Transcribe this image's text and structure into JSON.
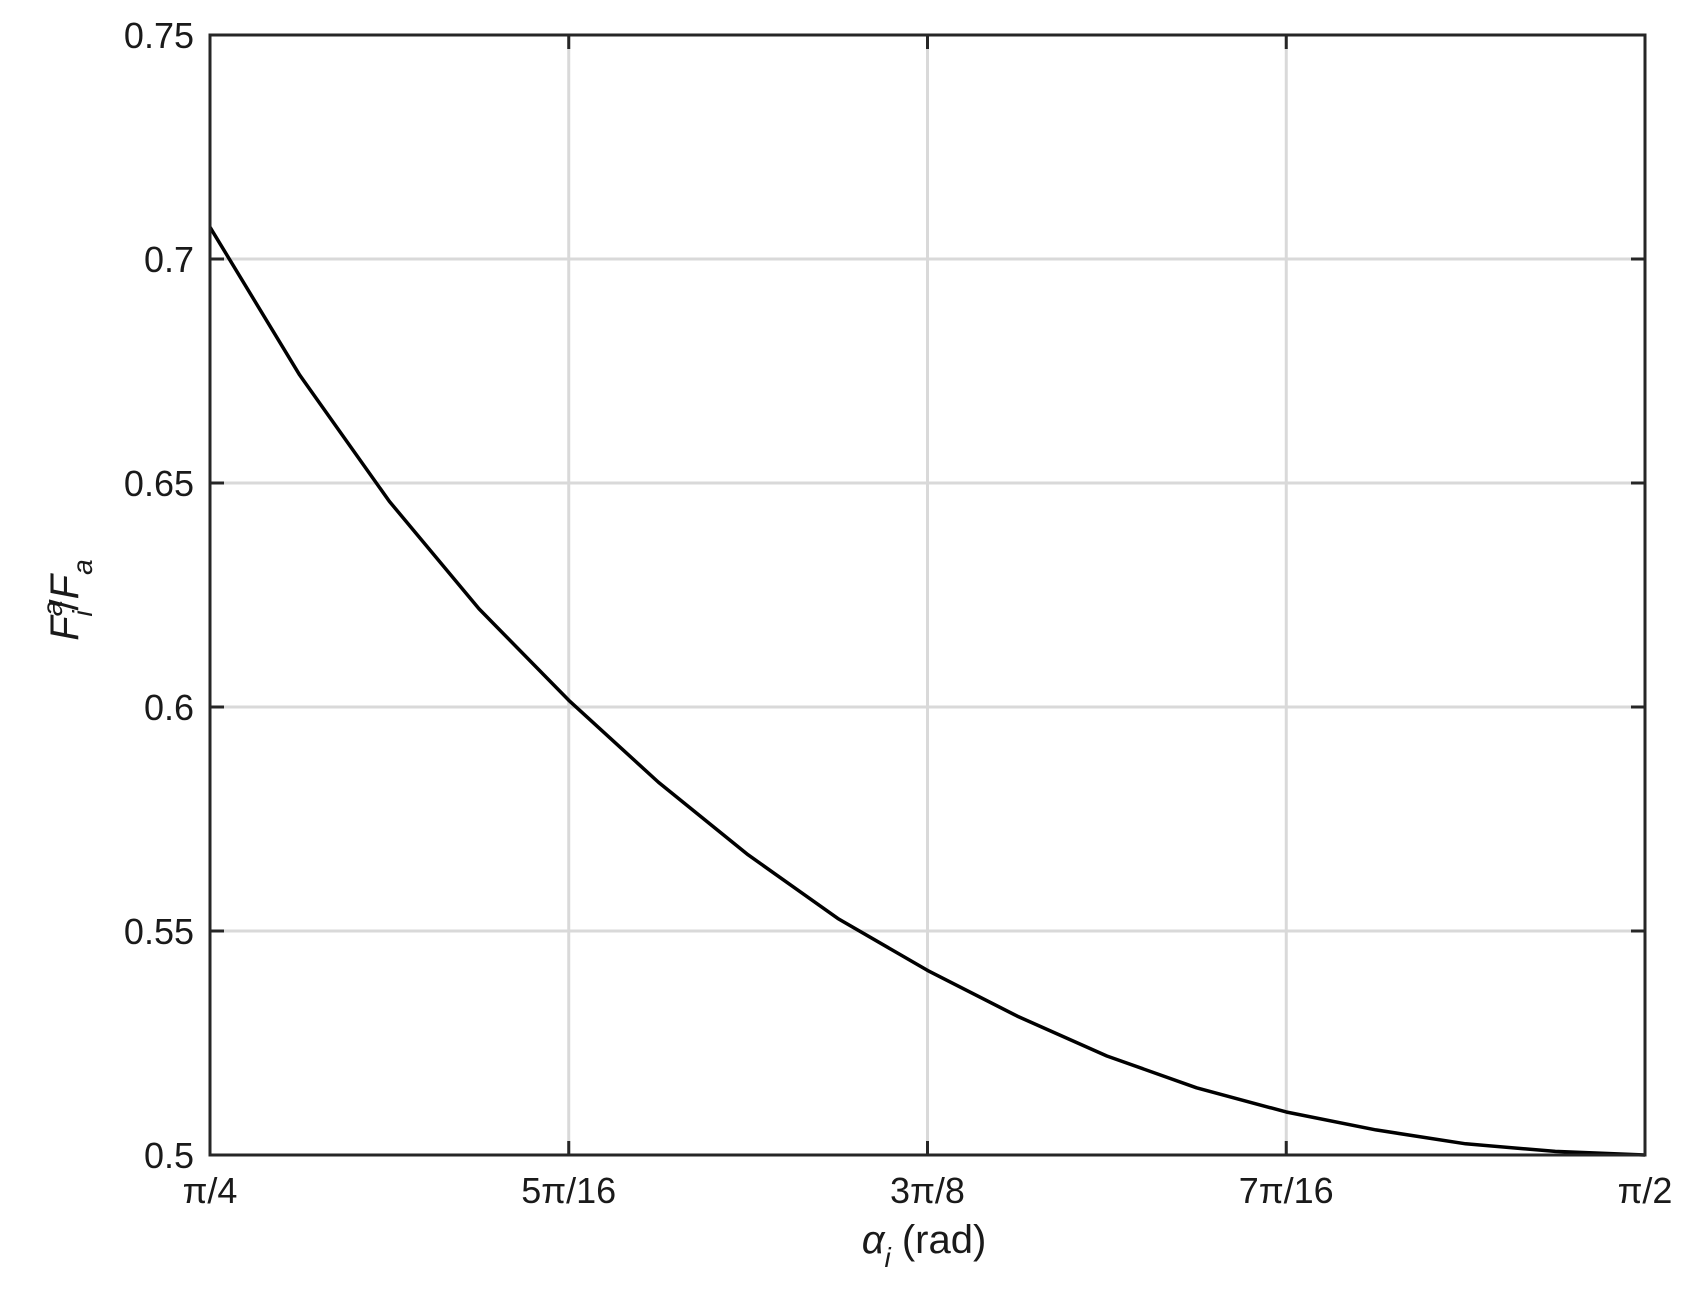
{
  "chart_data": {
    "type": "line",
    "title": "",
    "xlabel": {
      "symbol": "α",
      "subscript": "i",
      "unit": " (rad)"
    },
    "ylabel": {
      "symbol": "F",
      "superscript": "a",
      "subscript": "i",
      "slash": "/",
      "symbol2": "F",
      "subscript2": "a"
    },
    "xlim": [
      0.7853982,
      1.5707963
    ],
    "ylim": [
      0.5,
      0.75
    ],
    "xticks": [
      {
        "value": 0.7853982,
        "label": "π/4"
      },
      {
        "value": 0.9817477,
        "label": "5π/16"
      },
      {
        "value": 1.1780972,
        "label": "3π/8"
      },
      {
        "value": 1.3744468,
        "label": "7π/16"
      },
      {
        "value": 1.5707963,
        "label": "π/2"
      }
    ],
    "yticks": [
      {
        "value": 0.5,
        "label": "0.5"
      },
      {
        "value": 0.55,
        "label": "0.55"
      },
      {
        "value": 0.6,
        "label": "0.6"
      },
      {
        "value": 0.65,
        "label": "0.65"
      },
      {
        "value": 0.7,
        "label": "0.7"
      },
      {
        "value": 0.75,
        "label": "0.75"
      }
    ],
    "grid": true,
    "series": [
      {
        "color": "#000000",
        "x": [
          0.7853982,
          0.8344855,
          0.8835729,
          0.9326603,
          0.9817477,
          1.0308351,
          1.0799225,
          1.1290099,
          1.1780972,
          1.2271846,
          1.276272,
          1.3253594,
          1.3744468,
          1.4235342,
          1.4726216,
          1.5217089,
          1.5707963
        ],
        "y": [
          0.7071,
          0.6741,
          0.6459,
          0.6219,
          0.6015,
          0.5832,
          0.567,
          0.5528,
          0.5412,
          0.531,
          0.5221,
          0.515,
          0.5096,
          0.5056,
          0.5025,
          0.5008,
          0.5
        ]
      }
    ]
  },
  "colors": {
    "grid": "#d9d9d9",
    "axes": "#262626",
    "line": "#000000"
  }
}
